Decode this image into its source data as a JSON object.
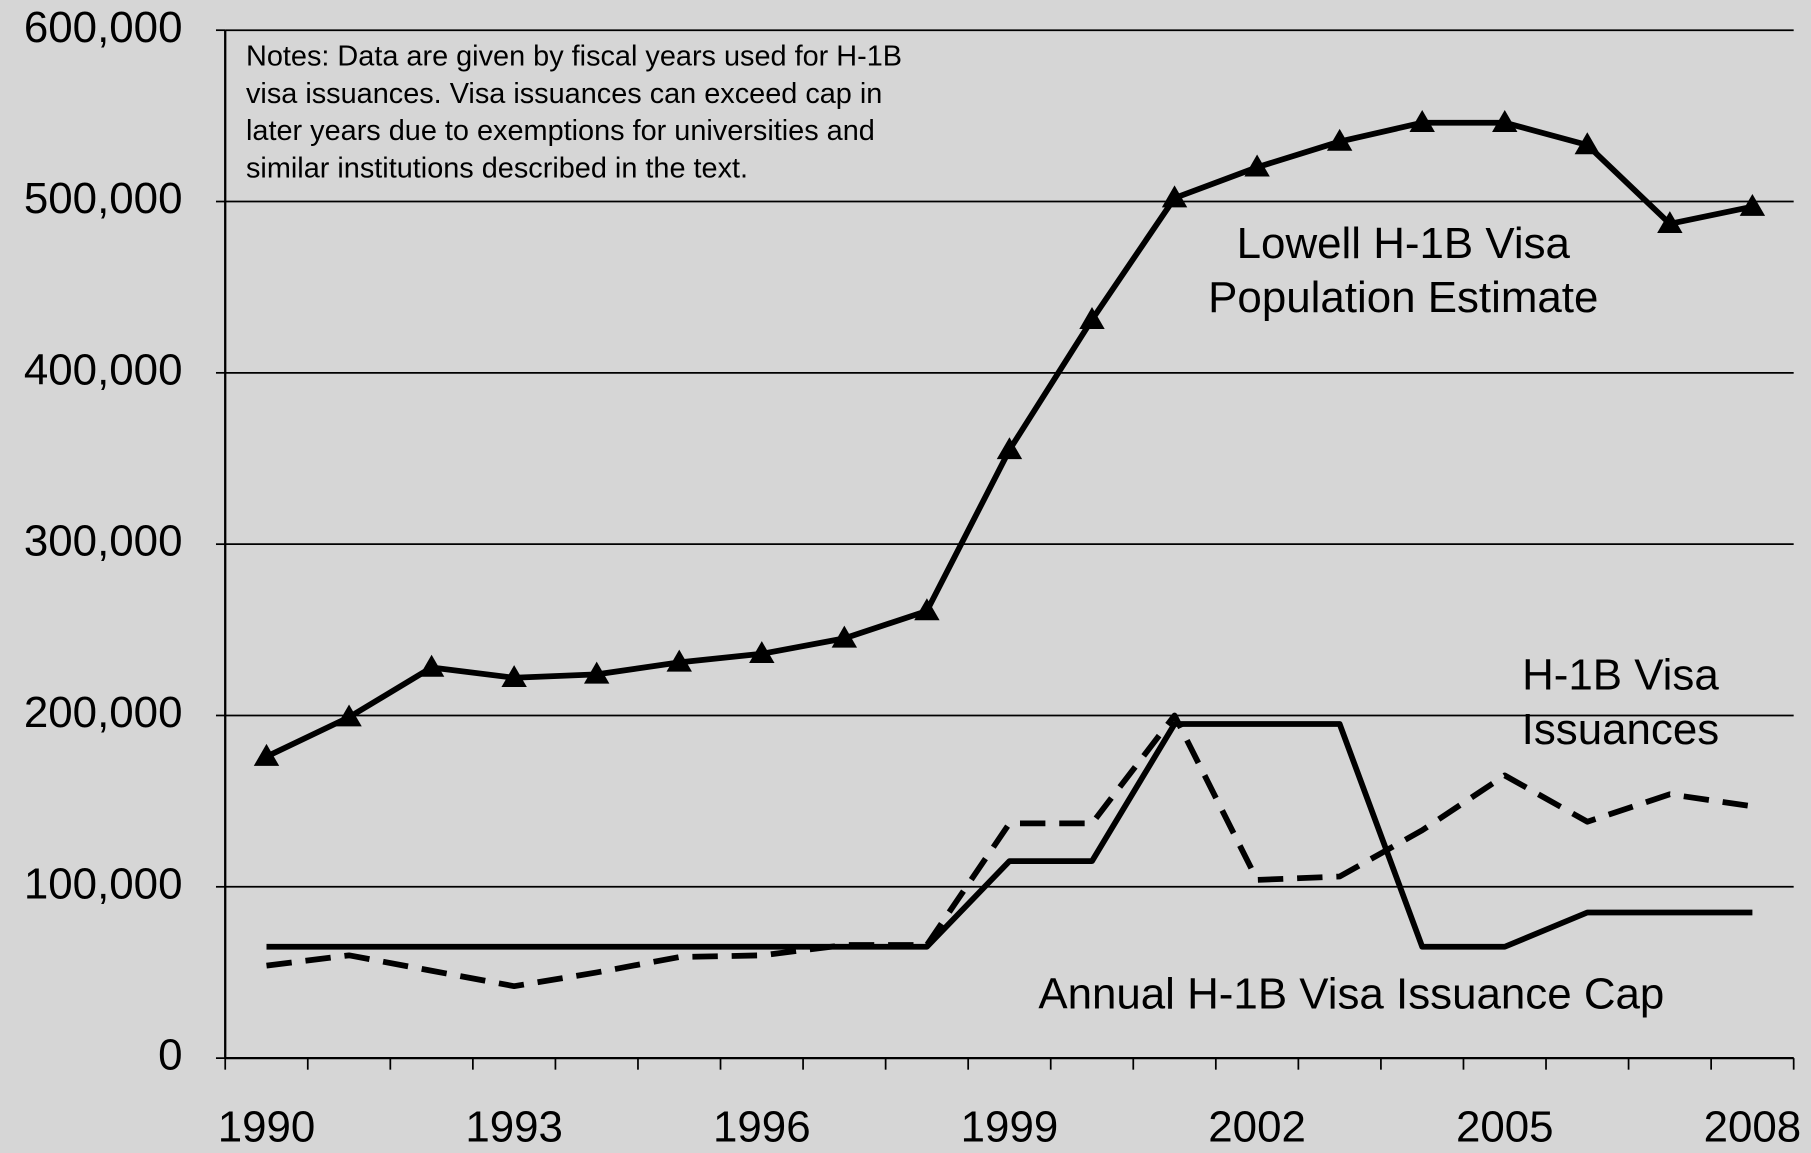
{
  "chart_data": {
    "type": "line",
    "notes": [
      "Notes:  Data are given by fiscal years used for H-1B",
      "visa issuances.   Visa issuances can exceed cap in",
      "later years due to exemptions for universities  and",
      "similar institutions described in the text."
    ],
    "categories": [
      "1990",
      null,
      null,
      "1993",
      null,
      null,
      "1996",
      null,
      null,
      "1999",
      null,
      null,
      "2002",
      null,
      null,
      "2005",
      null,
      null,
      "2008"
    ],
    "series": [
      {
        "name": [
          "Lowell H-1B Visa",
          "Population Estimate"
        ],
        "color": "#000000",
        "dash": false,
        "marker": "triangle",
        "values": [
          176000,
          199000,
          228000,
          222000,
          224000,
          231000,
          236000,
          245000,
          261000,
          355000,
          431000,
          502000,
          520000,
          535000,
          546000,
          546000,
          533000,
          487000,
          497000
        ]
      },
      {
        "name": [
          "H-1B Visa",
          "Issuances"
        ],
        "color": "#000000",
        "dash": true,
        "marker": "none",
        "values": [
          54000,
          60000,
          51000,
          42000,
          50000,
          59000,
          60000,
          66000,
          66000,
          137000,
          137000,
          200000,
          104000,
          106000,
          133000,
          165000,
          138000,
          154000,
          147000
        ]
      },
      {
        "name": [
          "Annual H-1B Visa Issuance Cap"
        ],
        "color": "#000000",
        "dash": false,
        "marker": "none",
        "values": [
          65000,
          65000,
          65000,
          65000,
          65000,
          65000,
          65000,
          65000,
          65000,
          115000,
          115000,
          195000,
          195000,
          195000,
          65000,
          65000,
          85000,
          85000,
          85000
        ]
      }
    ],
    "ylim": [
      0,
      600000
    ],
    "yticks": [
      0,
      {
        "value": 100000,
        "label": "100,000"
      },
      {
        "value": 200000,
        "label": "200,000"
      },
      {
        "value": 300000,
        "label": "300,000"
      },
      {
        "value": 400000,
        "label": "400,000"
      },
      {
        "value": 500000,
        "label": "500,000"
      },
      {
        "value": 600000,
        "label": "600,000"
      }
    ],
    "grid": true
  }
}
